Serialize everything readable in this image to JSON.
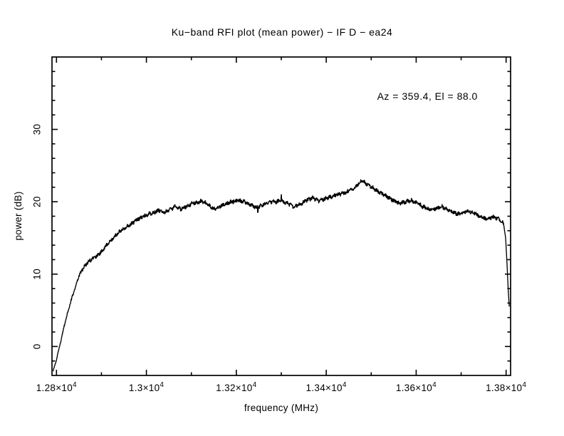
{
  "page": {
    "background": "#ffffff"
  },
  "chart_data": {
    "type": "line",
    "title": "Ku−band RFI plot (mean power) − IF D − ea24",
    "xlabel": "frequency (MHz)",
    "ylabel": "power (dB)",
    "annotation": {
      "text": "Az = 359.4, El = 88.0",
      "x": 13625,
      "y": 34.1
    },
    "xlim": [
      12790,
      13810
    ],
    "ylim": [
      -4,
      40
    ],
    "x_major_ticks": [
      12800,
      13000,
      13200,
      13400,
      13600,
      13800
    ],
    "x_tick_mantissas": [
      "1.28",
      "1.3",
      "1.32",
      "1.34",
      "1.36",
      "1.38"
    ],
    "x_tick_times": "×10",
    "x_tick_exponent": "4",
    "x_minor_step": 100,
    "y_major_ticks": [
      0,
      10,
      20,
      30
    ],
    "y_tick_labels": [
      "0",
      "10",
      "20",
      "30"
    ],
    "y_minor_step": 2,
    "grid": "off",
    "legend": "none",
    "line_color": "#000000",
    "frame_color": "#000000",
    "noise_amp_db": 0.26,
    "spikes": [
      {
        "x": 13300,
        "dy": 1.0
      },
      {
        "x": 13248,
        "dy": -0.8
      }
    ],
    "series": [
      {
        "name": "mean power",
        "points": [
          [
            12793,
            -3.3
          ],
          [
            12800,
            -1.8
          ],
          [
            12808,
            0.3
          ],
          [
            12817,
            2.8
          ],
          [
            12825,
            4.7
          ],
          [
            12833,
            6.5
          ],
          [
            12841,
            8.0
          ],
          [
            12849,
            9.6
          ],
          [
            12857,
            10.6
          ],
          [
            12865,
            11.3
          ],
          [
            12872,
            11.8
          ],
          [
            12880,
            12.1
          ],
          [
            12890,
            12.5
          ],
          [
            12900,
            13.1
          ],
          [
            12910,
            13.9
          ],
          [
            12920,
            14.6
          ],
          [
            12930,
            15.3
          ],
          [
            12942,
            16.0
          ],
          [
            12955,
            16.5
          ],
          [
            12968,
            17.0
          ],
          [
            12980,
            17.6
          ],
          [
            12992,
            17.9
          ],
          [
            13004,
            18.3
          ],
          [
            13016,
            18.5
          ],
          [
            13028,
            18.8
          ],
          [
            13040,
            18.5
          ],
          [
            13052,
            18.9
          ],
          [
            13064,
            19.3
          ],
          [
            13076,
            19.0
          ],
          [
            13088,
            19.3
          ],
          [
            13100,
            19.7
          ],
          [
            13112,
            19.9
          ],
          [
            13124,
            20.1
          ],
          [
            13136,
            19.7
          ],
          [
            13150,
            19.0
          ],
          [
            13163,
            19.3
          ],
          [
            13176,
            19.7
          ],
          [
            13190,
            20.0
          ],
          [
            13204,
            20.2
          ],
          [
            13218,
            20.0
          ],
          [
            13232,
            19.6
          ],
          [
            13246,
            19.2
          ],
          [
            13260,
            19.6
          ],
          [
            13274,
            19.9
          ],
          [
            13288,
            20.0
          ],
          [
            13300,
            20.1
          ],
          [
            13314,
            19.8
          ],
          [
            13328,
            19.3
          ],
          [
            13342,
            19.7
          ],
          [
            13356,
            20.2
          ],
          [
            13370,
            20.5
          ],
          [
            13384,
            20.1
          ],
          [
            13398,
            20.4
          ],
          [
            13412,
            20.7
          ],
          [
            13426,
            21.0
          ],
          [
            13440,
            21.2
          ],
          [
            13454,
            21.6
          ],
          [
            13468,
            22.2
          ],
          [
            13478,
            22.9
          ],
          [
            13490,
            22.5
          ],
          [
            13504,
            21.9
          ],
          [
            13518,
            21.3
          ],
          [
            13532,
            20.8
          ],
          [
            13546,
            20.3
          ],
          [
            13560,
            19.8
          ],
          [
            13574,
            19.9
          ],
          [
            13588,
            20.2
          ],
          [
            13602,
            19.8
          ],
          [
            13616,
            19.3
          ],
          [
            13630,
            18.9
          ],
          [
            13644,
            19.1
          ],
          [
            13658,
            19.3
          ],
          [
            13672,
            18.9
          ],
          [
            13686,
            18.4
          ],
          [
            13700,
            18.3
          ],
          [
            13714,
            18.7
          ],
          [
            13728,
            18.5
          ],
          [
            13742,
            18.0
          ],
          [
            13756,
            17.6
          ],
          [
            13770,
            17.9
          ],
          [
            13784,
            17.6
          ],
          [
            13794,
            17.1
          ],
          [
            13799,
            15.0
          ],
          [
            13802,
            11.5
          ],
          [
            13805,
            7.5
          ],
          [
            13807,
            5.6
          ]
        ]
      }
    ]
  }
}
